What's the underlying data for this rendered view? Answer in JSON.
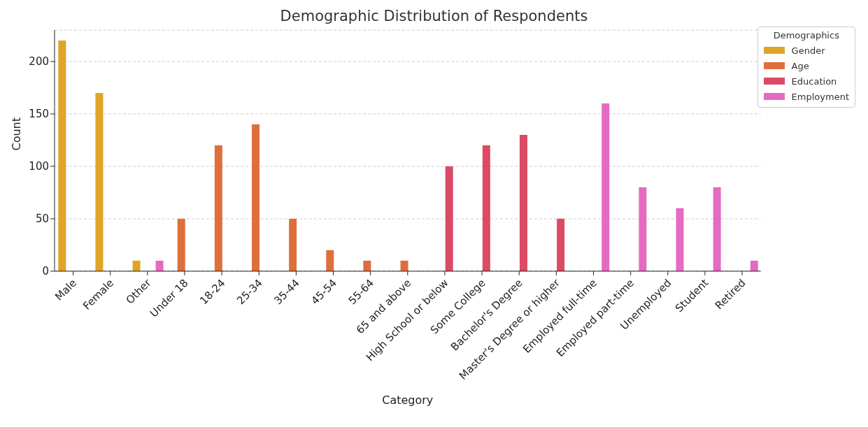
{
  "chart_data": {
    "type": "bar",
    "title": "Demographic Distribution of Respondents",
    "xlabel": "Category",
    "ylabel": "Count",
    "legend_title": "Demographics",
    "categories": [
      "Male",
      "Female",
      "Other",
      "Under 18",
      "18-24",
      "25-34",
      "35-44",
      "45-54",
      "55-64",
      "65 and above",
      "High School or below",
      "Some College",
      "Bachelor's Degree",
      "Master's Degree or higher",
      "Employed full-time",
      "Employed part-time",
      "Unemployed",
      "Student",
      "Retired"
    ],
    "series": [
      {
        "name": "Gender",
        "color": "#e1a427",
        "values": [
          220,
          170,
          10,
          null,
          null,
          null,
          null,
          null,
          null,
          null,
          null,
          null,
          null,
          null,
          null,
          null,
          null,
          null,
          null
        ]
      },
      {
        "name": "Age",
        "color": "#de6f3d",
        "values": [
          null,
          null,
          null,
          50,
          120,
          140,
          50,
          20,
          10,
          10,
          null,
          null,
          null,
          null,
          null,
          null,
          null,
          null,
          null
        ]
      },
      {
        "name": "Education",
        "color": "#dc4a63",
        "values": [
          null,
          null,
          null,
          null,
          null,
          null,
          null,
          null,
          null,
          null,
          100,
          120,
          130,
          50,
          null,
          null,
          null,
          null,
          null
        ]
      },
      {
        "name": "Employment",
        "color": "#e56ac1",
        "values": [
          null,
          null,
          10,
          null,
          null,
          null,
          null,
          null,
          null,
          null,
          null,
          null,
          null,
          null,
          160,
          80,
          60,
          80,
          10
        ]
      }
    ],
    "ylim": [
      0,
      230
    ],
    "yticks": [
      0,
      50,
      100,
      150,
      200
    ],
    "grid": "y",
    "legend": "top right"
  }
}
